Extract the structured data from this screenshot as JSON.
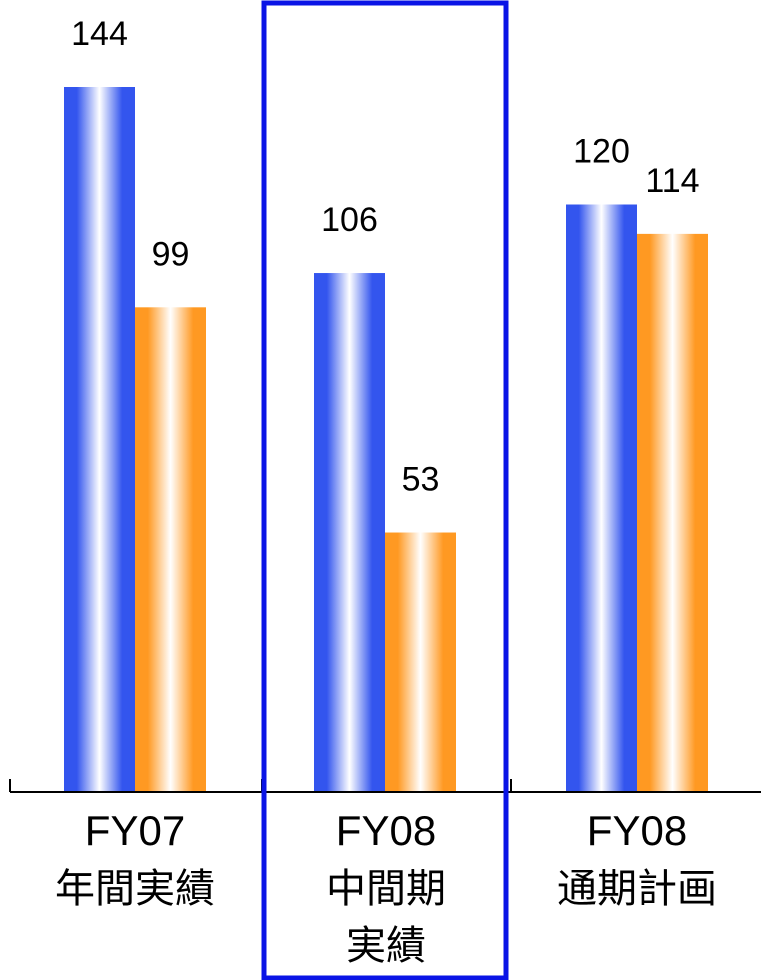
{
  "chart_data": {
    "type": "bar",
    "categories": [
      {
        "lines": [
          "FY07",
          "年間実績"
        ]
      },
      {
        "lines": [
          "FY08",
          "中間期",
          "実績"
        ]
      },
      {
        "lines": [
          "FY08",
          "通期計画"
        ]
      }
    ],
    "series": [
      {
        "color": "#3355ee",
        "values": [
          144,
          106,
          120
        ]
      },
      {
        "color": "#ff9922",
        "values": [
          99,
          53,
          114
        ]
      }
    ],
    "ylim": [
      0,
      165
    ],
    "grid": false,
    "legend": "none",
    "highlight": {
      "category_index": 1,
      "color": "#0a14e6"
    },
    "axis_color": "#000000"
  }
}
